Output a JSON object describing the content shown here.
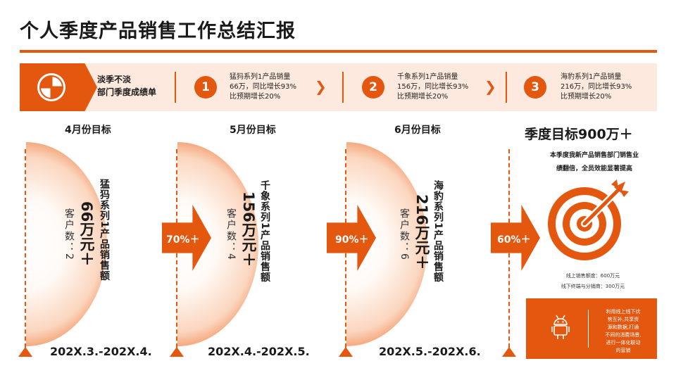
{
  "title": "个人季度产品销售工作总结汇报",
  "banner": {
    "label_line1": "淡季不淡",
    "label_line2": "部门季度成绩单",
    "items": [
      {
        "num": "1",
        "line1": "猛犸系列1产品销量",
        "line2": "66万，同比增长93%",
        "line3": "比预期增长20%"
      },
      {
        "num": "2",
        "line1": "千象系列1产品销量",
        "line2": "156万，同比增长93%",
        "line3": "比预期增长20%"
      },
      {
        "num": "3",
        "line1": "海豹系列1产品销量",
        "line2": "216万，同比增长93%",
        "line3": "比预期增长20%"
      }
    ],
    "chevron": "❯"
  },
  "timeline": [
    {
      "month": "4月份目标",
      "name": "猛犸系列1产品销售额",
      "amount": "66万元＋",
      "customers": "客户数：2",
      "period": "202X.3.-202X.4.",
      "growth": "70%＋"
    },
    {
      "month": "5月份目标",
      "name": "千象系列1产品销售额",
      "amount": "156万元＋",
      "customers": "客户数：4",
      "period": "202X.4.-202X.5.",
      "growth": "90%＋"
    },
    {
      "month": "6月份目标",
      "name": "海豹系列1产品销售额",
      "amount": "216万元＋",
      "customers": "客户数：6",
      "period": "202X.5.-202X.6.",
      "growth": "60%＋"
    }
  ],
  "goal": {
    "title": "季度目标900万＋",
    "desc_line1": "本季度我新产品销售部门销售业",
    "desc_line2": "绩翻倍，全员效能显著提高",
    "online": "线上销售额度：600万元",
    "offline": "线下终端与分销商：300万元"
  },
  "box": {
    "line1": "利用线上线下优",
    "line2": "势互补,共享资",
    "line3": "源和数据,打通",
    "line4": "不同的消费场景,",
    "line5": "进行一体化联动",
    "line6": "的营销"
  },
  "colors": {
    "accent": "#e3570f",
    "banner_bg": "#fde9dd"
  }
}
